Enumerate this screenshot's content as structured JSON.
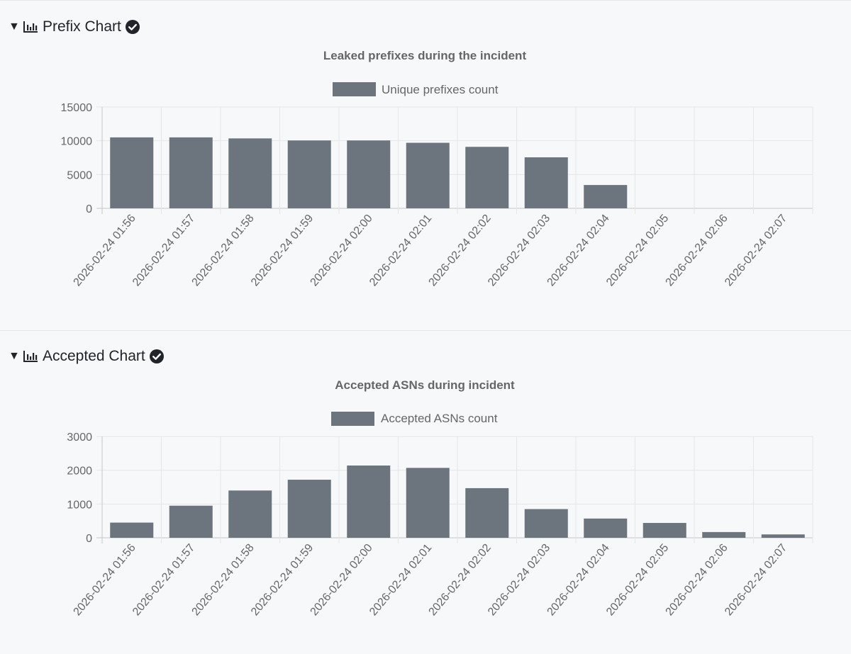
{
  "sections": [
    {
      "title": "Prefix Chart",
      "chart_icon": "bar-chart-icon",
      "status_icon": "check-circle-icon",
      "expanded": true
    },
    {
      "title": "Accepted Chart",
      "chart_icon": "bar-chart-icon",
      "status_icon": "check-circle-icon",
      "expanded": true
    }
  ],
  "colors": {
    "bar": "#6c757d",
    "grid": "#e6e6e6",
    "axis": "#c6c6c6",
    "text": "#666666"
  },
  "chart_data": [
    {
      "type": "bar",
      "title": "Leaked prefixes during the incident",
      "series": [
        {
          "name": "Unique prefixes count",
          "values": [
            10500,
            10500,
            10350,
            10050,
            10050,
            9700,
            9100,
            7550,
            3450,
            0,
            0,
            0
          ]
        }
      ],
      "categories": [
        "2026-02-24 01:56",
        "2026-02-24 01:57",
        "2026-02-24 01:58",
        "2026-02-24 01:59",
        "2026-02-24 02:00",
        "2026-02-24 02:01",
        "2026-02-24 02:02",
        "2026-02-24 02:03",
        "2026-02-24 02:04",
        "2026-02-24 02:05",
        "2026-02-24 02:06",
        "2026-02-24 02:07"
      ],
      "yticks": [
        0,
        5000,
        10000,
        15000
      ],
      "ylim": [
        0,
        15000
      ],
      "xlabel": "",
      "ylabel": "",
      "grid": true,
      "legend": "top-center"
    },
    {
      "type": "bar",
      "title": "Accepted ASNs during incident",
      "series": [
        {
          "name": "Accepted ASNs count",
          "values": [
            450,
            950,
            1400,
            1720,
            2140,
            2070,
            1470,
            850,
            570,
            440,
            170,
            100
          ]
        }
      ],
      "categories": [
        "2026-02-24 01:56",
        "2026-02-24 01:57",
        "2026-02-24 01:58",
        "2026-02-24 01:59",
        "2026-02-24 02:00",
        "2026-02-24 02:01",
        "2026-02-24 02:02",
        "2026-02-24 02:03",
        "2026-02-24 02:04",
        "2026-02-24 02:05",
        "2026-02-24 02:06",
        "2026-02-24 02:07"
      ],
      "yticks": [
        0,
        1000,
        2000,
        3000
      ],
      "ylim": [
        0,
        3000
      ],
      "xlabel": "",
      "ylabel": "",
      "grid": true,
      "legend": "top-center"
    }
  ]
}
